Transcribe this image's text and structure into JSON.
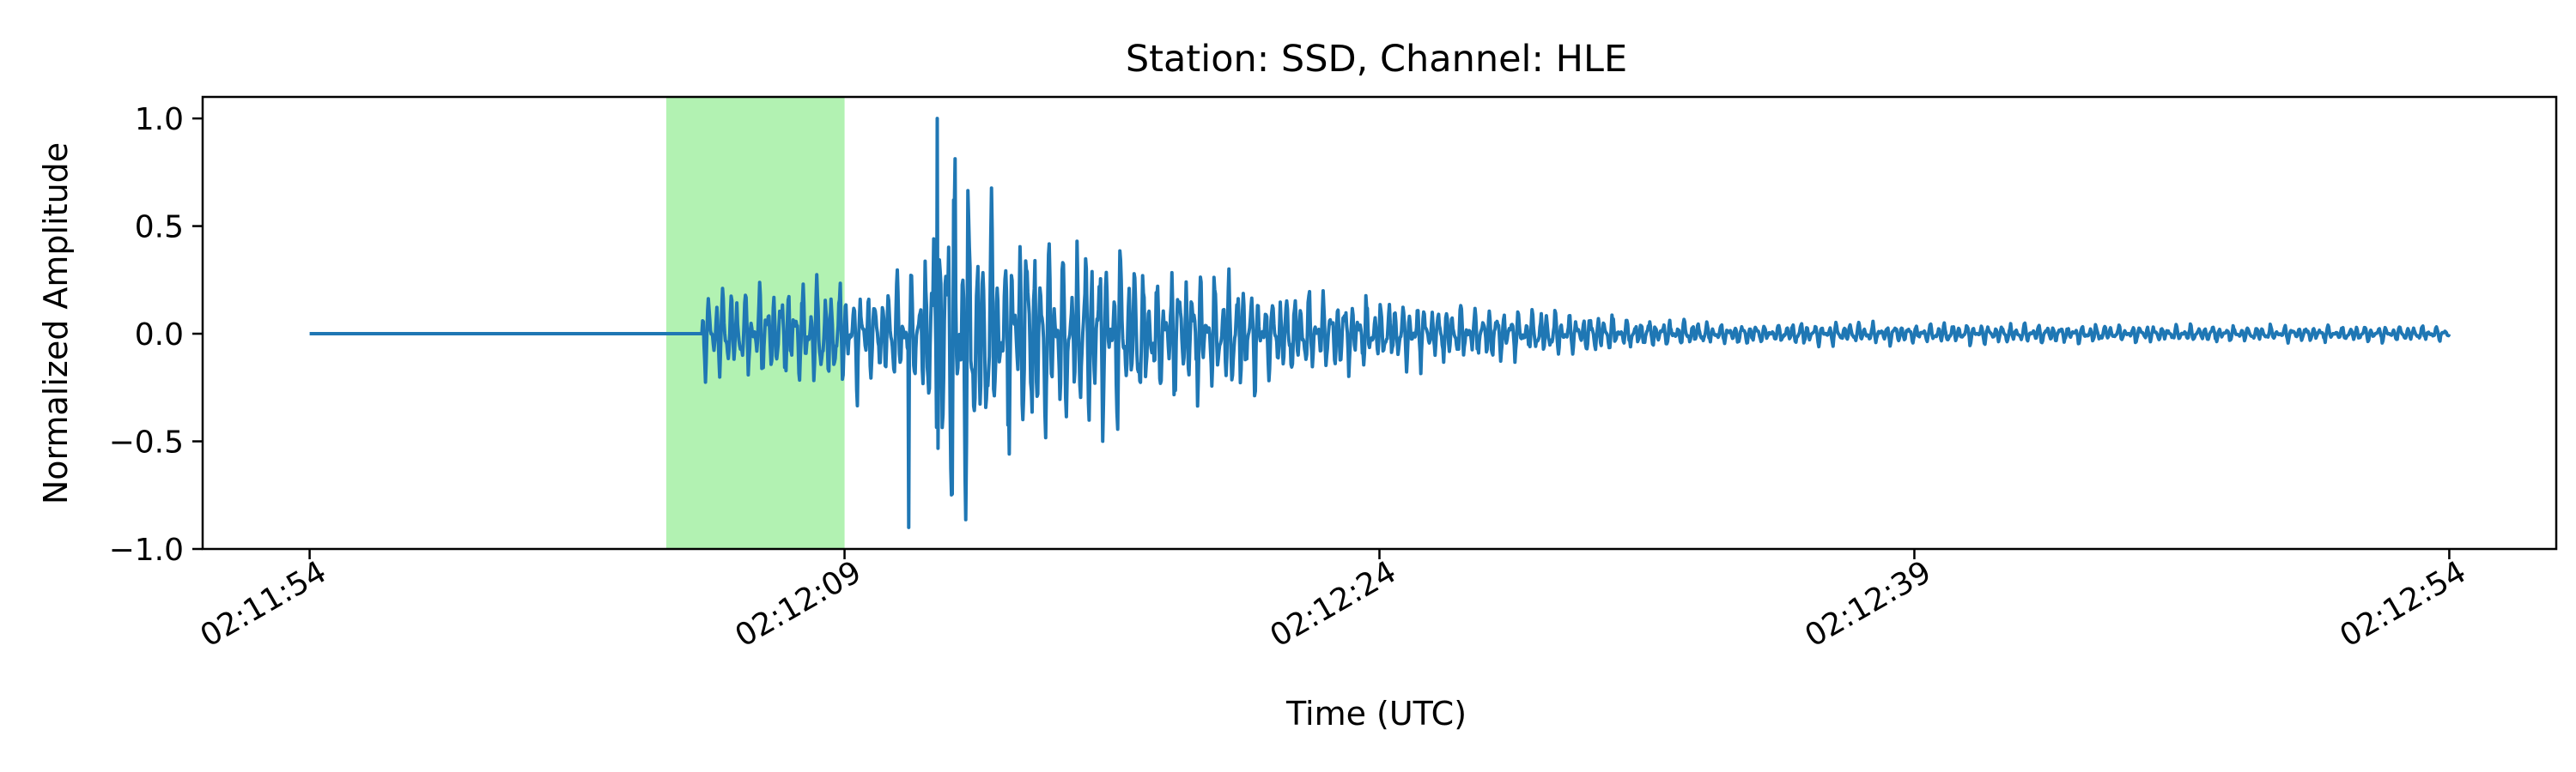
{
  "chart_data": {
    "type": "line",
    "title": "Station: SSD, Channel: HLE",
    "xlabel": "Time (UTC)",
    "ylabel": "Normalized Amplitude",
    "x_ticks": [
      "02:11:54",
      "02:12:09",
      "02:12:24",
      "02:12:39",
      "02:12:54"
    ],
    "y_ticks": [
      "1.0",
      "0.5",
      "0.0",
      "−0.5",
      "−1.0"
    ],
    "ylim": [
      -1.0,
      1.1
    ],
    "xlim_seconds": [
      -3,
      63
    ],
    "highlight_span": {
      "start": "02:12:04",
      "end": "02:12:09",
      "color": "#b2f2b2"
    },
    "line_color": "#1f77b4",
    "grid": false,
    "series": [
      {
        "t_start": "02:11:54",
        "t_end": "02:12:54",
        "quiet_until": "02:12:05",
        "envelope": [
          {
            "t": "02:12:05",
            "amp": 0.18
          },
          {
            "t": "02:12:09",
            "amp": 0.25
          },
          {
            "t": "02:12:11",
            "amp": 0.22
          },
          {
            "t": "02:12:12",
            "amp": 0.95
          },
          {
            "t": "02:12:13",
            "amp": 0.55
          },
          {
            "t": "02:12:18",
            "amp": 0.3
          },
          {
            "t": "02:12:24",
            "amp": 0.15
          },
          {
            "t": "02:12:33",
            "amp": 0.05
          },
          {
            "t": "02:12:54",
            "amp": 0.03
          }
        ],
        "peak_max": 1.0,
        "peak_min": -0.9
      }
    ]
  }
}
